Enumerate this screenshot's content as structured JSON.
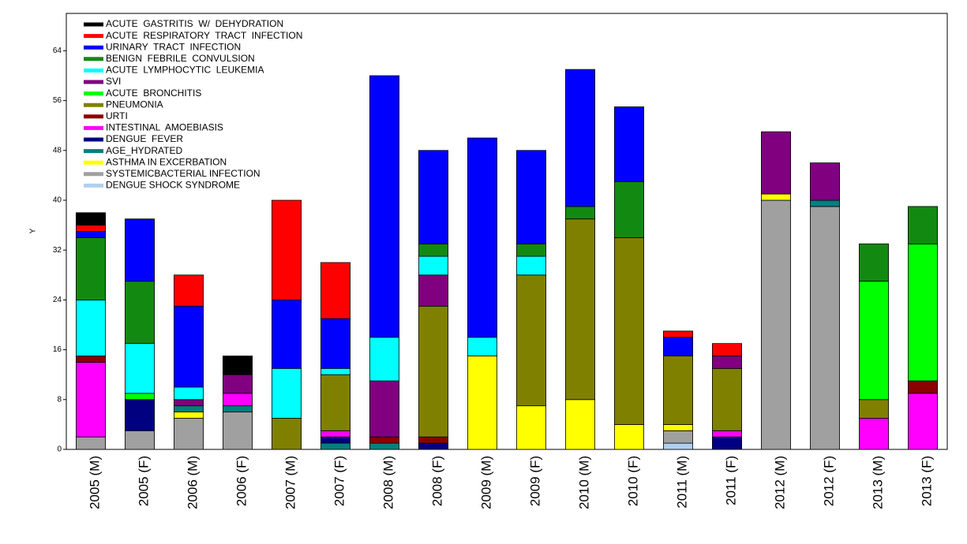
{
  "chart_data": {
    "type": "stacked_bar",
    "y_label": "Y",
    "categories": [
      "2005 (M)",
      "2005 (F)",
      "2006 (M)",
      "2006 (F)",
      "2007 (M)",
      "2007 (F)",
      "2008 (M)",
      "2008 (F)",
      "2009 (M)",
      "2009 (F)",
      "2010 (M)",
      "2010 (F)",
      "2011 (M)",
      "2011 (F)",
      "2012 (M)",
      "2012 (F)",
      "2013 (M)",
      "2013 (F)"
    ],
    "ylim": [
      0,
      70
    ],
    "yticks": [
      0,
      8,
      16,
      24,
      32,
      40,
      48,
      56,
      64
    ],
    "series": [
      {
        "name": "ACUTE  GASTRITIS  W/  DEHYDRATION",
        "color": "#000000",
        "values": [
          2,
          0,
          0,
          3,
          0,
          0,
          0,
          0,
          0,
          0,
          0,
          0,
          0,
          0,
          0,
          0,
          0,
          0
        ]
      },
      {
        "name": "ACUTE  RESPIRATORY  TRACT  INFECTION",
        "color": "#ff0000",
        "values": [
          1,
          0,
          5,
          0,
          16,
          9,
          0,
          0,
          0,
          0,
          0,
          0,
          1,
          2,
          0,
          0,
          0,
          0
        ]
      },
      {
        "name": "URINARY  TRACT  INFECTION",
        "color": "#0000ff",
        "values": [
          1,
          10,
          13,
          0,
          11,
          8,
          42,
          15,
          32,
          15,
          22,
          12,
          3,
          0,
          0,
          0,
          0,
          0
        ]
      },
      {
        "name": "BENIGN  FEBRILE  CONVULSION",
        "color": "#128a12",
        "values": [
          10,
          10,
          0,
          0,
          0,
          0,
          0,
          2,
          0,
          2,
          2,
          9,
          0,
          0,
          0,
          0,
          6,
          6
        ]
      },
      {
        "name": "ACUTE  LYMPHOCYTIC  LEUKEMIA",
        "color": "#00ffff",
        "values": [
          9,
          8,
          2,
          0,
          8,
          1,
          7,
          3,
          3,
          3,
          0,
          0,
          0,
          0,
          0,
          0,
          0,
          0
        ]
      },
      {
        "name": "SVI",
        "color": "#800080",
        "values": [
          0,
          0,
          1,
          3,
          0,
          0,
          9,
          5,
          0,
          0,
          0,
          0,
          0,
          2,
          10,
          6,
          0,
          0
        ]
      },
      {
        "name": "ACUTE  BRONCHITIS",
        "color": "#00ff00",
        "values": [
          0,
          1,
          0,
          0,
          0,
          0,
          0,
          0,
          0,
          0,
          0,
          0,
          0,
          0,
          0,
          0,
          19,
          22
        ]
      },
      {
        "name": "PNEUMONIA",
        "color": "#808000",
        "values": [
          0,
          0,
          0,
          0,
          5,
          9,
          0,
          21,
          0,
          21,
          29,
          30,
          11,
          10,
          0,
          0,
          3,
          0
        ]
      },
      {
        "name": "URTI",
        "color": "#8b0000",
        "values": [
          1,
          0,
          0,
          0,
          0,
          0,
          1,
          1,
          0,
          0,
          0,
          0,
          0,
          0,
          0,
          0,
          0,
          2
        ]
      },
      {
        "name": "INTESTINAL  AMOEBIASIS",
        "color": "#ff00ff",
        "values": [
          12,
          0,
          0,
          2,
          0,
          1,
          0,
          0,
          0,
          0,
          0,
          0,
          0,
          1,
          0,
          0,
          5,
          9
        ]
      },
      {
        "name": "DENGUE  FEVER",
        "color": "#000080",
        "values": [
          0,
          5,
          0,
          0,
          0,
          1,
          0,
          1,
          0,
          0,
          0,
          0,
          0,
          2,
          0,
          0,
          0,
          0
        ]
      },
      {
        "name": "AGE_HYDRATED",
        "color": "#008080",
        "values": [
          0,
          0,
          1,
          1,
          0,
          1,
          1,
          0,
          0,
          0,
          0,
          0,
          0,
          0,
          0,
          1,
          0,
          0
        ]
      },
      {
        "name": "ASTHMA IN EXCERBATION",
        "color": "#ffff00",
        "values": [
          0,
          0,
          1,
          0,
          0,
          0,
          0,
          0,
          15,
          7,
          8,
          4,
          1,
          0,
          1,
          0,
          0,
          0
        ]
      },
      {
        "name": "SYSTEMICBACTERIAL INFECTION",
        "color": "#a0a0a0",
        "values": [
          2,
          3,
          5,
          6,
          0,
          0,
          0,
          0,
          0,
          0,
          0,
          0,
          2,
          0,
          40,
          39,
          0,
          0
        ]
      },
      {
        "name": "DENGUE SHOCK SYNDROME",
        "color": "#b0d0f0",
        "values": [
          0,
          0,
          0,
          0,
          0,
          0,
          0,
          0,
          0,
          0,
          0,
          0,
          1,
          0,
          0,
          0,
          0,
          0
        ]
      }
    ]
  }
}
